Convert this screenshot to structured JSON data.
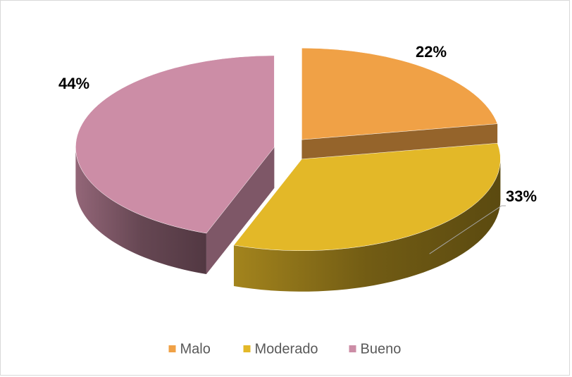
{
  "chart_data": {
    "type": "pie",
    "categories": [
      "Malo",
      "Moderado",
      "Bueno"
    ],
    "values": [
      22,
      33,
      44
    ],
    "value_labels": [
      "22%",
      "33%",
      "44%"
    ],
    "colors": [
      "#f0a146",
      "#e3b828",
      "#cc8da6"
    ],
    "legend": "bottom"
  }
}
